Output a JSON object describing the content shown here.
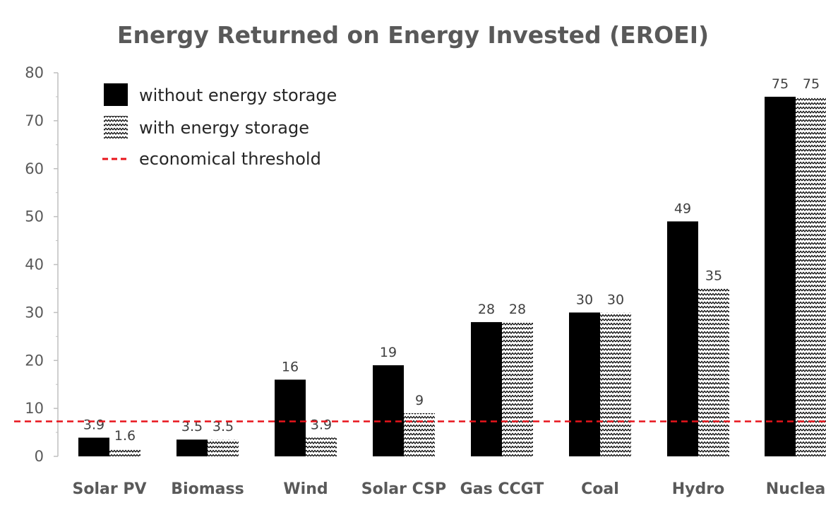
{
  "chart_data": {
    "type": "bar",
    "title": "Energy Returned on Energy Invested (EROEI)",
    "xlabel": "",
    "ylabel": "",
    "ylim": [
      0,
      80
    ],
    "yticks": [
      "0",
      "10",
      "20",
      "30",
      "40",
      "50",
      "60",
      "70",
      "80"
    ],
    "categories": [
      "Solar PV",
      "Biomass",
      "Wind",
      "Solar CSP",
      "Gas CCGT",
      "Coal",
      "Hydro",
      "Nuclea"
    ],
    "series": [
      {
        "name": "without energy storage",
        "values": [
          3.9,
          3.5,
          16,
          19,
          28,
          30,
          49,
          75
        ],
        "labels": [
          "3.9",
          "3.5",
          "16",
          "19",
          "28",
          "30",
          "49",
          "75"
        ],
        "color": "#000000",
        "fill": "solid"
      },
      {
        "name": "with energy storage",
        "values": [
          1.6,
          3.5,
          3.9,
          9,
          28,
          30,
          35,
          75
        ],
        "labels": [
          "1.6",
          "3.5",
          "3.9",
          "9",
          "28",
          "30",
          "35",
          "75"
        ],
        "color": "#000000",
        "fill": "zigzag-pattern"
      }
    ],
    "threshold": {
      "name": "economical threshold",
      "value": 7.3,
      "color": "#e8141b",
      "style": "dashed"
    },
    "legend_position": "top-left",
    "grid": false
  }
}
